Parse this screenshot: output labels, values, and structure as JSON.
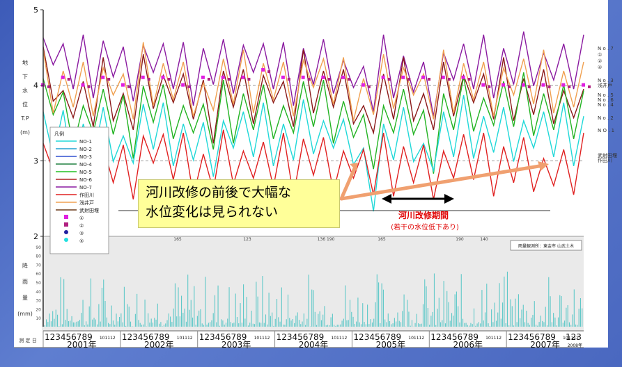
{
  "chart_data": {
    "type": "line",
    "water_level": {
      "y_axis_label_chars": [
        "地",
        "下",
        "水",
        "位",
        "T.P",
        "(m)"
      ],
      "yticks": [
        2,
        3,
        4,
        5
      ],
      "ylim": [
        2,
        5
      ],
      "grid_dashed": [
        3,
        4
      ],
      "x": [
        "2001-01",
        "2001-04",
        "2001-07",
        "2001-10",
        "2002-01",
        "2002-04",
        "2002-07",
        "2002-10",
        "2003-01",
        "2003-04",
        "2003-07",
        "2003-10",
        "2004-01",
        "2004-04",
        "2004-07",
        "2004-10",
        "2005-01",
        "2005-04",
        "2005-07",
        "2005-10",
        "2006-01",
        "2006-04",
        "2006-07",
        "2006-10",
        "2007-01",
        "2007-04",
        "2007-07",
        "2007-10"
      ],
      "series": [
        {
          "name": "NO-7",
          "color": "#8a1aa0",
          "values": [
            4.5,
            4.3,
            4.3,
            4.4,
            4.2,
            4.4,
            4.3,
            4.2,
            4.3,
            4.3,
            4.4,
            4.3,
            4.2,
            4.3,
            4.3,
            4.2,
            4.0,
            4.3,
            4.2,
            4.0,
            4.3,
            4.3,
            4.3,
            4.3,
            4.4,
            4.3,
            4.3,
            4.3
          ]
        },
        {
          "name": "NO-6",
          "color": "#8b1a1a",
          "values": [
            4.2,
            3.8,
            3.8,
            4.0,
            3.7,
            4.1,
            4.0,
            3.9,
            3.7,
            4.0,
            3.9,
            4.0,
            3.8,
            4.1,
            4.0,
            3.9,
            3.6,
            3.9,
            4.0,
            3.7,
            4.0,
            4.0,
            3.9,
            4.0,
            3.9,
            3.9,
            3.8,
            3.7
          ]
        },
        {
          "name": "NO-5",
          "color": "#22b322",
          "values": [
            3.9,
            3.6,
            3.6,
            3.7,
            3.5,
            3.8,
            3.7,
            3.6,
            3.5,
            3.7,
            3.7,
            3.7,
            3.6,
            3.8,
            3.7,
            3.6,
            3.3,
            3.6,
            3.7,
            3.3,
            3.7,
            3.8,
            3.7,
            3.8,
            3.8,
            3.7,
            3.7,
            3.8
          ]
        },
        {
          "name": "NO-3",
          "color": "#f0a050",
          "values": [
            4.1,
            4.0,
            4.0,
            4.1,
            3.9,
            4.2,
            4.1,
            4.0,
            3.9,
            4.1,
            4.1,
            4.1,
            4.0,
            4.2,
            4.1,
            4.0,
            3.9,
            4.1,
            4.1,
            3.9,
            4.1,
            4.1,
            4.0,
            4.1,
            4.1,
            4.1,
            4.0,
            4.0
          ]
        },
        {
          "name": "NO-1",
          "color": "#20d8d8",
          "values": [
            3.4,
            3.3,
            3.3,
            3.4,
            3.2,
            3.5,
            3.4,
            3.3,
            3.2,
            3.4,
            3.4,
            3.4,
            3.3,
            3.5,
            3.4,
            3.3,
            2.8,
            3.3,
            3.4,
            3.1,
            3.4,
            3.5,
            3.4,
            3.4,
            3.4,
            3.4,
            3.4,
            3.4
          ]
        },
        {
          "name": "武射田堰",
          "color": "#e02020",
          "values": [
            3.1,
            3.0,
            2.9,
            3.0,
            2.9,
            3.2,
            3.1,
            3.0,
            2.9,
            3.1,
            3.0,
            3.0,
            3.0,
            3.1,
            3.0,
            3.0,
            2.9,
            3.0,
            3.0,
            2.9,
            3.0,
            3.1,
            3.0,
            3.0,
            3.0,
            2.9,
            2.9,
            3.0
          ]
        }
      ],
      "points_magenta": [
        4.0,
        4.1,
        4.0,
        4.1,
        4.0,
        4.1,
        4.1,
        4.0,
        4.1,
        4.1,
        4.1,
        4.2,
        4.1,
        4.1,
        4.1,
        4.1,
        4.0,
        4.1,
        4.1,
        4.1,
        4.1,
        4.1,
        4.0,
        4.0,
        4.0,
        4.0,
        4.0,
        4.0
      ],
      "right_labels": [
        "N o . 7",
        "①",
        "②",
        "④",
        "N o . 3",
        "浅井戸",
        "N o . 5",
        "N o . 6",
        "N o . 4",
        "N o . 2",
        "N O . 1",
        "武射田堰",
        "作田川"
      ],
      "legend_title": "凡例",
      "legend_entries": [
        {
          "label": "NO-1",
          "color": "#20d8d8",
          "kind": "line"
        },
        {
          "label": "NO-2",
          "color": "#20a0d0",
          "kind": "line"
        },
        {
          "label": "NO-3",
          "color": "#3050d0",
          "kind": "line"
        },
        {
          "label": "NO-4",
          "color": "#208040",
          "kind": "line"
        },
        {
          "label": "NO-5",
          "color": "#22c022",
          "kind": "line"
        },
        {
          "label": "NO-6",
          "color": "#b02020",
          "kind": "line"
        },
        {
          "label": "NO-7",
          "color": "#8a1aa0",
          "kind": "line"
        },
        {
          "label": "作田川",
          "color": "#e02020",
          "kind": "line"
        },
        {
          "label": "浅井戸",
          "color": "#f0a050",
          "kind": "line"
        },
        {
          "label": "武射田堰",
          "color": "#6a3a1a",
          "kind": "line"
        },
        {
          "label": "①",
          "color": "#e020e0",
          "kind": "square"
        },
        {
          "label": "②",
          "color": "#b02080",
          "kind": "square"
        },
        {
          "label": "③",
          "color": "#2020a0",
          "kind": "circle"
        },
        {
          "label": "⑤",
          "color": "#20e0e0",
          "kind": "circle"
        }
      ]
    },
    "rainfall": {
      "y_axis_label_chars": [
        "降",
        "雨",
        "量",
        "(mm)"
      ],
      "yticks": [
        10,
        20,
        30,
        40,
        50,
        60,
        70,
        80,
        90
      ],
      "ylim": [
        0,
        100
      ],
      "title_box": "雨量観測所：東金市 山武土木",
      "peak_labels": [
        "165",
        "123",
        "136 190",
        "165",
        "190",
        "140"
      ]
    },
    "x_axis": {
      "label_chars": "測 定 日",
      "years": [
        "2001年",
        "2002年",
        "2003年",
        "2004年",
        "2005年",
        "2006年",
        "2007年",
        "2008年"
      ],
      "month_digits": "123456789",
      "month_tail": "101112",
      "last_months": "123"
    },
    "annotations": {
      "callout": [
        "河川改修の前後で大幅な",
        "水位変化は見られない"
      ],
      "period_label": "河川改修期間",
      "period_note": "(若干の水位低下あり)"
    }
  }
}
